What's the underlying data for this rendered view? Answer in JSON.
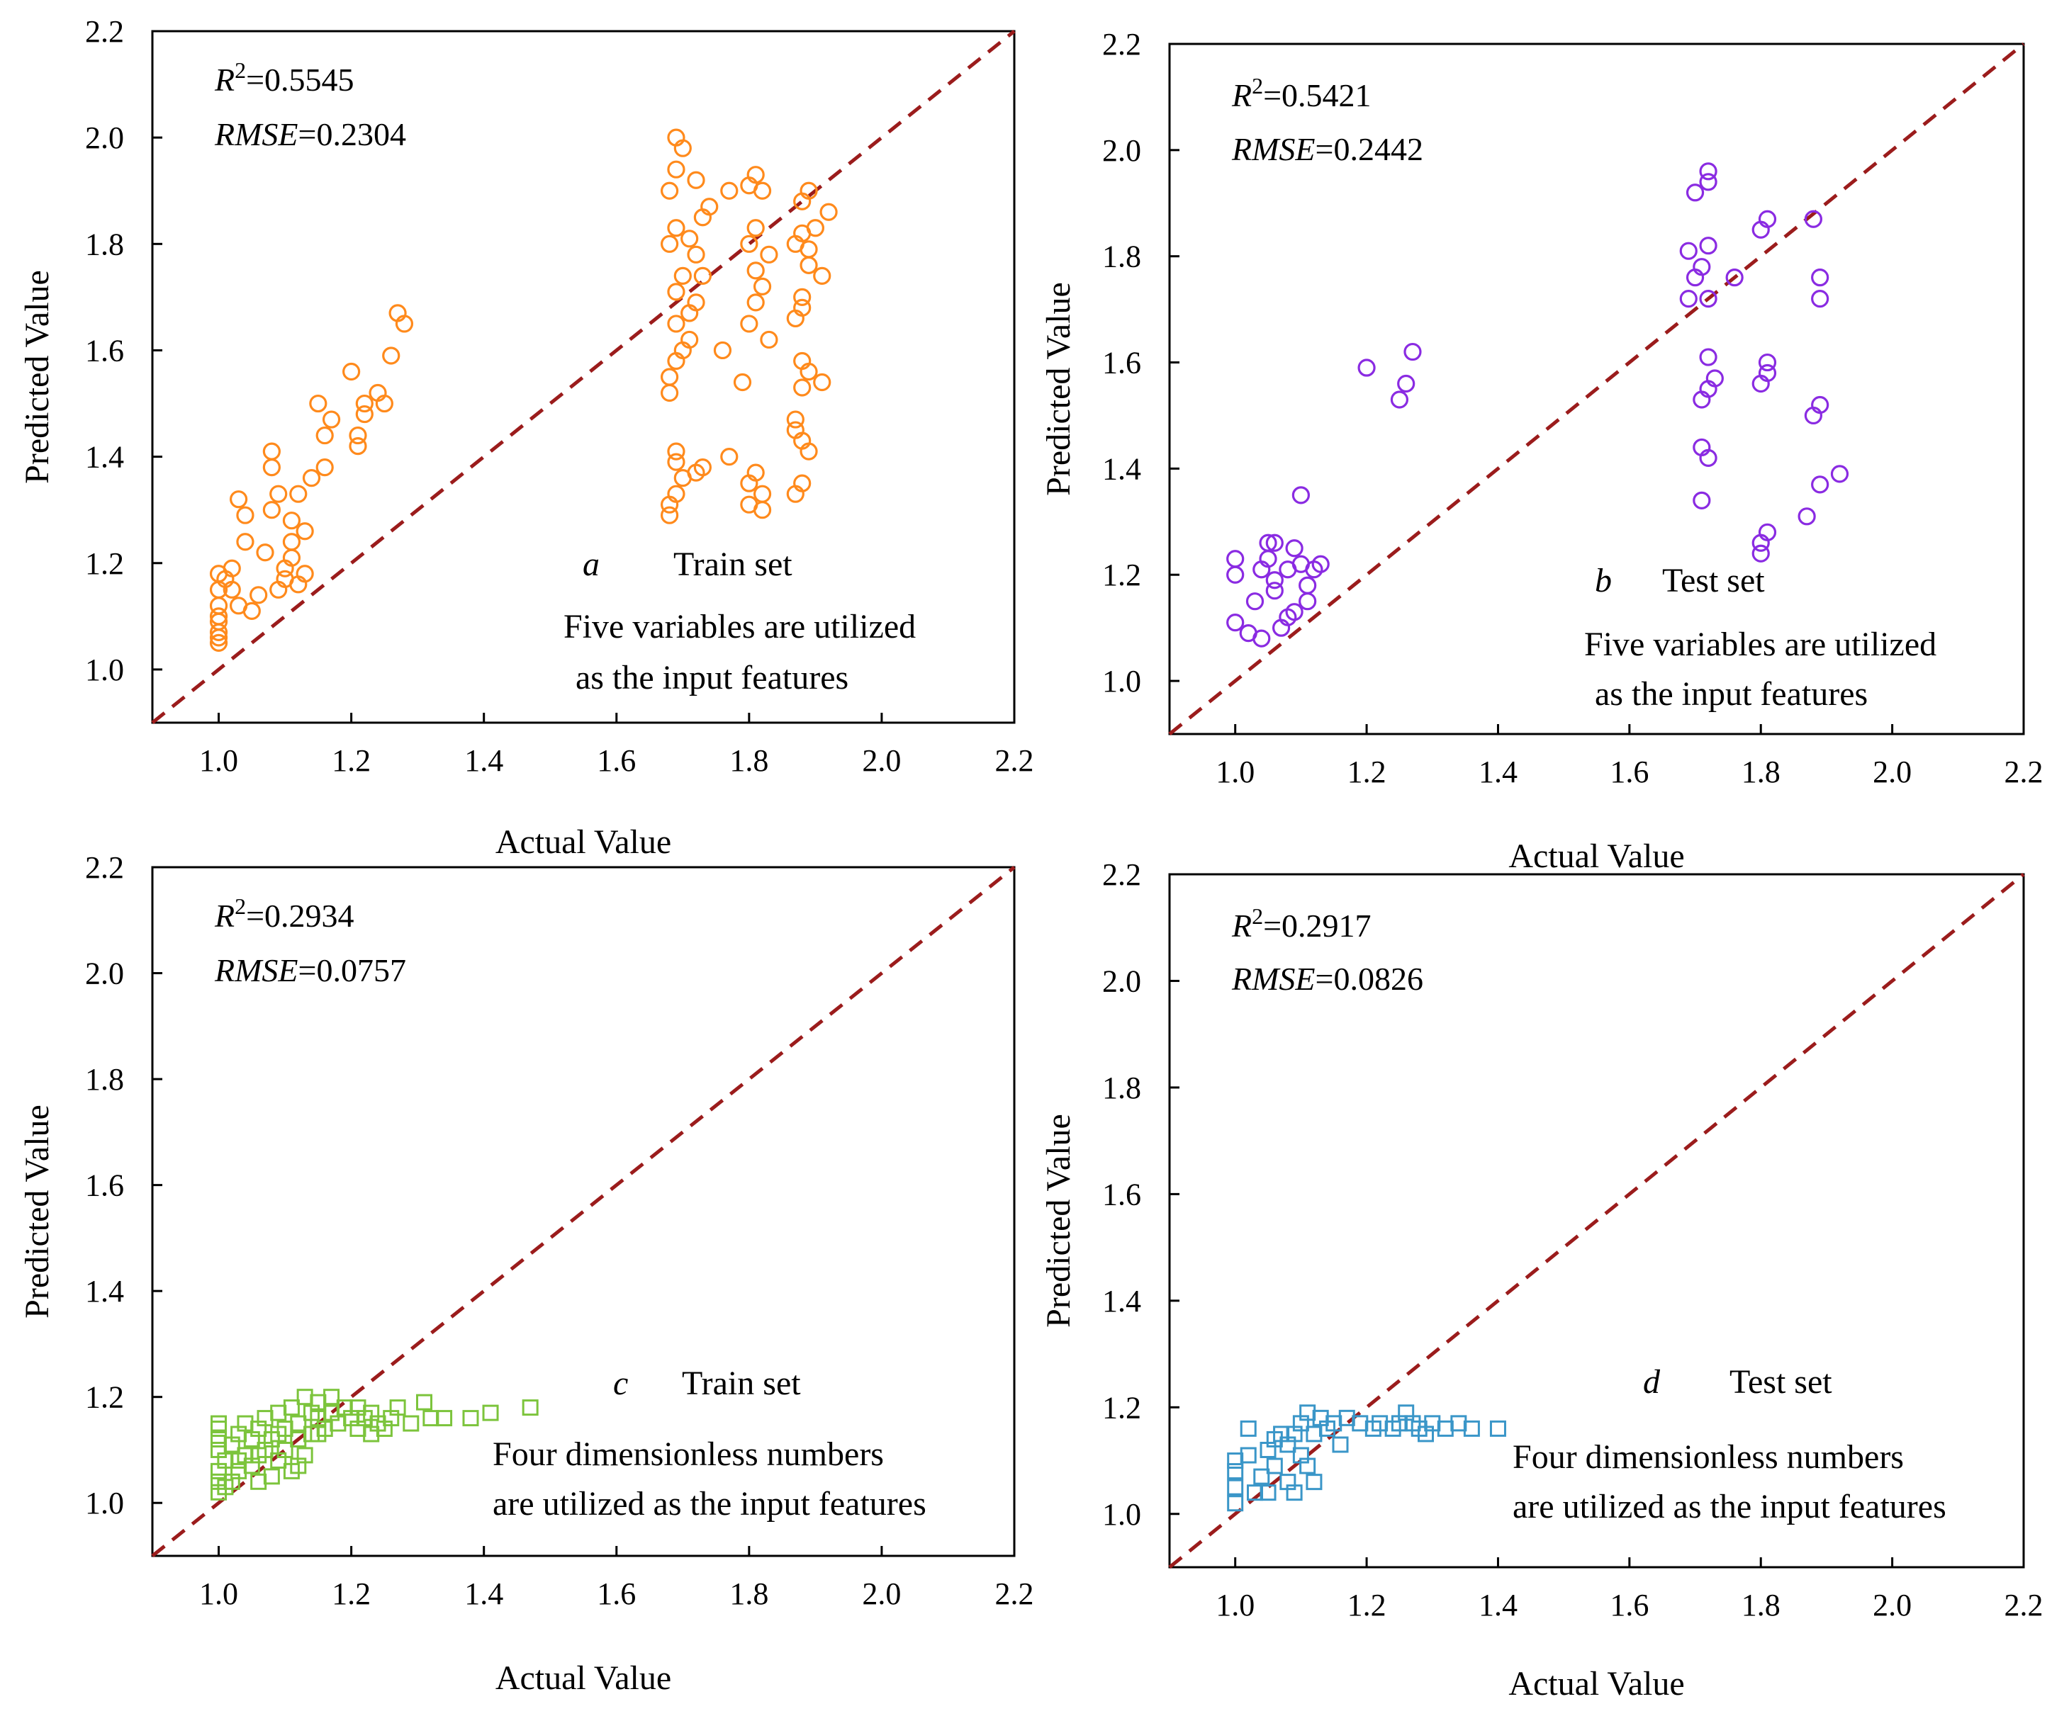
{
  "chart_data": [
    {
      "panel": "a",
      "type": "scatter",
      "xlabel": "Actual Value",
      "ylabel": "Predicted Value",
      "xlim": [
        0.9,
        2.2
      ],
      "ylim": [
        0.9,
        2.2
      ],
      "xticks": [
        "1.0",
        "1.2",
        "1.4",
        "1.6",
        "1.8",
        "2.0",
        "2.2"
      ],
      "yticks": [
        "1.0",
        "1.2",
        "1.4",
        "1.6",
        "1.8",
        "2.0",
        "2.2"
      ],
      "r2_label": "R",
      "r2_sup": "2",
      "r2_value": "=0.5545",
      "rmse_label": "RMSE",
      "rmse_value": "=0.2304",
      "letter": "a",
      "set_label": "Train set",
      "desc_line1": "Five variables are utilized",
      "desc_line2": "as  the input features",
      "marker": "circle",
      "color": "#FF8A1C",
      "diagonal_color": "#9B1C1C",
      "points": [
        [
          1.0,
          1.05
        ],
        [
          1.0,
          1.07
        ],
        [
          1.0,
          1.09
        ],
        [
          1.0,
          1.12
        ],
        [
          1.0,
          1.15
        ],
        [
          1.0,
          1.18
        ],
        [
          1.0,
          1.06
        ],
        [
          1.0,
          1.1
        ],
        [
          1.01,
          1.17
        ],
        [
          1.02,
          1.15
        ],
        [
          1.02,
          1.19
        ],
        [
          1.03,
          1.32
        ],
        [
          1.03,
          1.12
        ],
        [
          1.04,
          1.24
        ],
        [
          1.04,
          1.29
        ],
        [
          1.05,
          1.11
        ],
        [
          1.06,
          1.14
        ],
        [
          1.07,
          1.22
        ],
        [
          1.08,
          1.3
        ],
        [
          1.08,
          1.38
        ],
        [
          1.08,
          1.41
        ],
        [
          1.09,
          1.33
        ],
        [
          1.09,
          1.15
        ],
        [
          1.1,
          1.17
        ],
        [
          1.1,
          1.19
        ],
        [
          1.11,
          1.21
        ],
        [
          1.11,
          1.24
        ],
        [
          1.11,
          1.28
        ],
        [
          1.12,
          1.16
        ],
        [
          1.12,
          1.33
        ],
        [
          1.13,
          1.18
        ],
        [
          1.13,
          1.26
        ],
        [
          1.14,
          1.36
        ],
        [
          1.15,
          1.5
        ],
        [
          1.16,
          1.38
        ],
        [
          1.16,
          1.44
        ],
        [
          1.17,
          1.47
        ],
        [
          1.2,
          1.56
        ],
        [
          1.21,
          1.42
        ],
        [
          1.21,
          1.44
        ],
        [
          1.22,
          1.48
        ],
        [
          1.22,
          1.5
        ],
        [
          1.24,
          1.52
        ],
        [
          1.25,
          1.5
        ],
        [
          1.26,
          1.59
        ],
        [
          1.27,
          1.67
        ],
        [
          1.28,
          1.65
        ],
        [
          1.68,
          1.29
        ],
        [
          1.68,
          1.31
        ],
        [
          1.69,
          1.33
        ],
        [
          1.69,
          1.39
        ],
        [
          1.69,
          1.41
        ],
        [
          1.7,
          1.36
        ],
        [
          1.68,
          1.52
        ],
        [
          1.68,
          1.55
        ],
        [
          1.69,
          1.58
        ],
        [
          1.7,
          1.6
        ],
        [
          1.71,
          1.62
        ],
        [
          1.69,
          1.65
        ],
        [
          1.71,
          1.67
        ],
        [
          1.72,
          1.69
        ],
        [
          1.69,
          1.71
        ],
        [
          1.7,
          1.74
        ],
        [
          1.68,
          1.8
        ],
        [
          1.69,
          1.83
        ],
        [
          1.71,
          1.81
        ],
        [
          1.72,
          1.78
        ],
        [
          1.73,
          1.74
        ],
        [
          1.73,
          1.85
        ],
        [
          1.74,
          1.87
        ],
        [
          1.72,
          1.92
        ],
        [
          1.68,
          1.9
        ],
        [
          1.69,
          1.94
        ],
        [
          1.7,
          1.98
        ],
        [
          1.69,
          2.0
        ],
        [
          1.72,
          1.37
        ],
        [
          1.73,
          1.38
        ],
        [
          1.77,
          1.4
        ],
        [
          1.76,
          1.6
        ],
        [
          1.77,
          1.9
        ],
        [
          1.79,
          1.54
        ],
        [
          1.8,
          1.31
        ],
        [
          1.8,
          1.35
        ],
        [
          1.81,
          1.37
        ],
        [
          1.82,
          1.3
        ],
        [
          1.82,
          1.33
        ],
        [
          1.8,
          1.65
        ],
        [
          1.81,
          1.69
        ],
        [
          1.82,
          1.72
        ],
        [
          1.81,
          1.75
        ],
        [
          1.83,
          1.62
        ],
        [
          1.83,
          1.78
        ],
        [
          1.8,
          1.8
        ],
        [
          1.81,
          1.83
        ],
        [
          1.8,
          1.91
        ],
        [
          1.81,
          1.93
        ],
        [
          1.82,
          1.9
        ],
        [
          1.87,
          1.33
        ],
        [
          1.88,
          1.35
        ],
        [
          1.87,
          1.45
        ],
        [
          1.88,
          1.43
        ],
        [
          1.89,
          1.41
        ],
        [
          1.87,
          1.47
        ],
        [
          1.88,
          1.53
        ],
        [
          1.89,
          1.56
        ],
        [
          1.88,
          1.58
        ],
        [
          1.87,
          1.66
        ],
        [
          1.88,
          1.68
        ],
        [
          1.88,
          1.7
        ],
        [
          1.89,
          1.76
        ],
        [
          1.89,
          1.79
        ],
        [
          1.87,
          1.8
        ],
        [
          1.88,
          1.82
        ],
        [
          1.9,
          1.83
        ],
        [
          1.88,
          1.88
        ],
        [
          1.89,
          1.9
        ],
        [
          1.91,
          1.54
        ],
        [
          1.91,
          1.74
        ],
        [
          1.92,
          1.86
        ]
      ]
    },
    {
      "panel": "b",
      "type": "scatter",
      "xlabel": "Actual Value",
      "ylabel": "Predicted Value",
      "xlim": [
        0.9,
        2.2
      ],
      "ylim": [
        0.9,
        2.2
      ],
      "xticks": [
        "1.0",
        "1.2",
        "1.4",
        "1.6",
        "1.8",
        "2.0",
        "2.2"
      ],
      "yticks": [
        "1.0",
        "1.2",
        "1.4",
        "1.6",
        "1.8",
        "2.0",
        "2.2"
      ],
      "r2_label": "R",
      "r2_sup": "2",
      "r2_value": "=0.5421",
      "rmse_label": "RMSE",
      "rmse_value": "=0.2442",
      "letter": "b",
      "set_label": "Test set",
      "desc_line1": "Five variables are utilized",
      "desc_line2": "as the input features",
      "marker": "circle",
      "color": "#8A2BE2",
      "diagonal_color": "#9B1C1C",
      "points": [
        [
          1.0,
          1.11
        ],
        [
          1.0,
          1.2
        ],
        [
          1.0,
          1.23
        ],
        [
          1.02,
          1.09
        ],
        [
          1.03,
          1.15
        ],
        [
          1.04,
          1.08
        ],
        [
          1.04,
          1.21
        ],
        [
          1.05,
          1.23
        ],
        [
          1.05,
          1.26
        ],
        [
          1.06,
          1.19
        ],
        [
          1.06,
          1.26
        ],
        [
          1.06,
          1.17
        ],
        [
          1.07,
          1.1
        ],
        [
          1.08,
          1.12
        ],
        [
          1.08,
          1.21
        ],
        [
          1.09,
          1.13
        ],
        [
          1.09,
          1.25
        ],
        [
          1.1,
          1.35
        ],
        [
          1.1,
          1.22
        ],
        [
          1.11,
          1.15
        ],
        [
          1.11,
          1.18
        ],
        [
          1.12,
          1.21
        ],
        [
          1.13,
          1.22
        ],
        [
          1.2,
          1.59
        ],
        [
          1.25,
          1.53
        ],
        [
          1.26,
          1.56
        ],
        [
          1.27,
          1.62
        ],
        [
          1.69,
          1.72
        ],
        [
          1.69,
          1.81
        ],
        [
          1.7,
          1.76
        ],
        [
          1.7,
          1.92
        ],
        [
          1.71,
          1.34
        ],
        [
          1.71,
          1.44
        ],
        [
          1.72,
          1.42
        ],
        [
          1.71,
          1.53
        ],
        [
          1.72,
          1.55
        ],
        [
          1.73,
          1.57
        ],
        [
          1.72,
          1.61
        ],
        [
          1.72,
          1.72
        ],
        [
          1.71,
          1.78
        ],
        [
          1.72,
          1.82
        ],
        [
          1.72,
          1.94
        ],
        [
          1.72,
          1.96
        ],
        [
          1.76,
          1.76
        ],
        [
          1.8,
          1.24
        ],
        [
          1.8,
          1.26
        ],
        [
          1.81,
          1.28
        ],
        [
          1.8,
          1.56
        ],
        [
          1.81,
          1.58
        ],
        [
          1.81,
          1.6
        ],
        [
          1.8,
          1.85
        ],
        [
          1.81,
          1.87
        ],
        [
          1.87,
          1.31
        ],
        [
          1.88,
          1.5
        ],
        [
          1.88,
          1.87
        ],
        [
          1.89,
          1.52
        ],
        [
          1.89,
          1.37
        ],
        [
          1.89,
          1.76
        ],
        [
          1.89,
          1.72
        ],
        [
          1.92,
          1.39
        ]
      ]
    },
    {
      "panel": "c",
      "type": "scatter",
      "xlabel": "Actual Value",
      "ylabel": "Predicted Value",
      "xlim": [
        0.9,
        2.2
      ],
      "ylim": [
        0.9,
        2.2
      ],
      "xticks": [
        "1.0",
        "1.2",
        "1.4",
        "1.6",
        "1.8",
        "2.0",
        "2.2"
      ],
      "yticks": [
        "1.0",
        "1.2",
        "1.4",
        "1.6",
        "1.8",
        "2.0",
        "2.2"
      ],
      "r2_label": "R",
      "r2_sup": "2",
      "r2_value": "=0.2934",
      "rmse_label": "RMSE",
      "rmse_value": "=0.0757",
      "letter": "c",
      "set_label": "Train set",
      "desc_line1": "Four  dimensionless numbers",
      "desc_line2": "are utilized as the input features",
      "marker": "square",
      "color": "#7CC43C",
      "diagonal_color": "#9B1C1C",
      "points": [
        [
          1.0,
          1.02
        ],
        [
          1.0,
          1.04
        ],
        [
          1.0,
          1.06
        ],
        [
          1.0,
          1.1
        ],
        [
          1.0,
          1.12
        ],
        [
          1.0,
          1.14
        ],
        [
          1.0,
          1.15
        ],
        [
          1.01,
          1.08
        ],
        [
          1.02,
          1.04
        ],
        [
          1.02,
          1.11
        ],
        [
          1.03,
          1.13
        ],
        [
          1.03,
          1.06
        ],
        [
          1.04,
          1.09
        ],
        [
          1.04,
          1.15
        ],
        [
          1.05,
          1.12
        ],
        [
          1.05,
          1.07
        ],
        [
          1.06,
          1.14
        ],
        [
          1.06,
          1.04
        ],
        [
          1.07,
          1.1
        ],
        [
          1.07,
          1.16
        ],
        [
          1.08,
          1.05
        ],
        [
          1.08,
          1.12
        ],
        [
          1.09,
          1.17
        ],
        [
          1.09,
          1.08
        ],
        [
          1.1,
          1.14
        ],
        [
          1.1,
          1.1
        ],
        [
          1.11,
          1.06
        ],
        [
          1.11,
          1.18
        ],
        [
          1.12,
          1.15
        ],
        [
          1.12,
          1.12
        ],
        [
          1.13,
          1.2
        ],
        [
          1.13,
          1.09
        ],
        [
          1.14,
          1.17
        ],
        [
          1.14,
          1.13
        ],
        [
          1.15,
          1.16
        ],
        [
          1.15,
          1.19
        ],
        [
          1.16,
          1.14
        ],
        [
          1.17,
          1.2
        ],
        [
          1.17,
          1.17
        ],
        [
          1.18,
          1.15
        ],
        [
          1.19,
          1.18
        ],
        [
          1.2,
          1.16
        ],
        [
          1.21,
          1.14
        ],
        [
          1.21,
          1.18
        ],
        [
          1.22,
          1.16
        ],
        [
          1.23,
          1.13
        ],
        [
          1.23,
          1.17
        ],
        [
          1.24,
          1.15
        ],
        [
          1.25,
          1.14
        ],
        [
          1.26,
          1.16
        ],
        [
          1.27,
          1.18
        ],
        [
          1.29,
          1.15
        ],
        [
          1.31,
          1.19
        ],
        [
          1.32,
          1.16
        ],
        [
          1.34,
          1.16
        ],
        [
          1.38,
          1.16
        ],
        [
          1.41,
          1.17
        ],
        [
          1.47,
          1.18
        ],
        [
          1.01,
          1.03
        ],
        [
          1.03,
          1.08
        ],
        [
          1.06,
          1.09
        ],
        [
          1.09,
          1.13
        ],
        [
          1.12,
          1.07
        ],
        [
          1.15,
          1.13
        ]
      ]
    },
    {
      "panel": "d",
      "type": "scatter",
      "xlabel": "Actual Value",
      "ylabel": "Predicted Value",
      "xlim": [
        0.9,
        2.2
      ],
      "ylim": [
        0.9,
        2.2
      ],
      "xticks": [
        "1.0",
        "1.2",
        "1.4",
        "1.6",
        "1.8",
        "2.0",
        "2.2"
      ],
      "yticks": [
        "1.0",
        "1.2",
        "1.4",
        "1.6",
        "1.8",
        "2.0",
        "2.2"
      ],
      "r2_label": "R",
      "r2_sup": "2",
      "r2_value": "=0.2917",
      "rmse_label": "RMSE",
      "rmse_value": "=0.0826",
      "letter": "d",
      "set_label": "Test set",
      "desc_line1": "Four dimensionless numbers",
      "desc_line2": "are utilized as the input features",
      "marker": "square",
      "color": "#3A96C8",
      "diagonal_color": "#9B1C1C",
      "points": [
        [
          1.0,
          1.02
        ],
        [
          1.0,
          1.05
        ],
        [
          1.0,
          1.08
        ],
        [
          1.0,
          1.1
        ],
        [
          1.02,
          1.11
        ],
        [
          1.02,
          1.16
        ],
        [
          1.03,
          1.04
        ],
        [
          1.04,
          1.07
        ],
        [
          1.05,
          1.04
        ],
        [
          1.05,
          1.12
        ],
        [
          1.06,
          1.14
        ],
        [
          1.06,
          1.09
        ],
        [
          1.07,
          1.15
        ],
        [
          1.08,
          1.06
        ],
        [
          1.08,
          1.13
        ],
        [
          1.09,
          1.04
        ],
        [
          1.09,
          1.15
        ],
        [
          1.1,
          1.11
        ],
        [
          1.1,
          1.17
        ],
        [
          1.11,
          1.19
        ],
        [
          1.11,
          1.09
        ],
        [
          1.12,
          1.06
        ],
        [
          1.12,
          1.15
        ],
        [
          1.13,
          1.18
        ],
        [
          1.14,
          1.16
        ],
        [
          1.15,
          1.17
        ],
        [
          1.16,
          1.13
        ],
        [
          1.17,
          1.18
        ],
        [
          1.19,
          1.17
        ],
        [
          1.21,
          1.16
        ],
        [
          1.22,
          1.17
        ],
        [
          1.24,
          1.16
        ],
        [
          1.25,
          1.17
        ],
        [
          1.26,
          1.19
        ],
        [
          1.27,
          1.17
        ],
        [
          1.28,
          1.16
        ],
        [
          1.29,
          1.15
        ],
        [
          1.3,
          1.17
        ],
        [
          1.32,
          1.16
        ],
        [
          1.34,
          1.17
        ],
        [
          1.36,
          1.16
        ],
        [
          1.4,
          1.16
        ]
      ]
    }
  ]
}
